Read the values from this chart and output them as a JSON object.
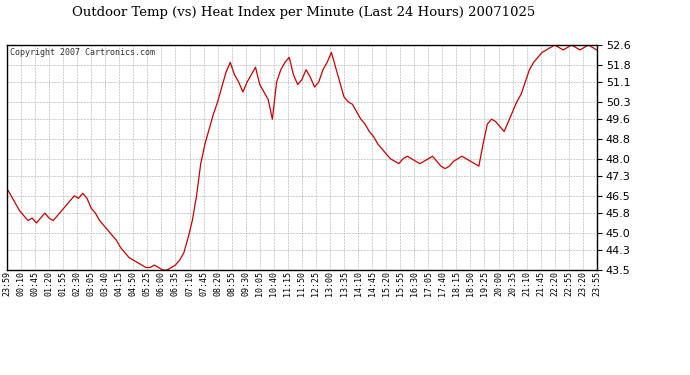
{
  "title": "Outdoor Temp (vs) Heat Index per Minute (Last 24 Hours) 20071025",
  "copyright": "Copyright 2007 Cartronics.com",
  "line_color": "#cc0000",
  "background_color": "#ffffff",
  "grid_color": "#aaaaaa",
  "yticks": [
    43.5,
    44.3,
    45.0,
    45.8,
    46.5,
    47.3,
    48.0,
    48.8,
    49.6,
    50.3,
    51.1,
    51.8,
    52.6
  ],
  "ylim": [
    43.5,
    52.6
  ],
  "xtick_labels": [
    "23:59",
    "00:10",
    "00:45",
    "01:20",
    "01:55",
    "02:30",
    "03:05",
    "03:40",
    "04:15",
    "04:50",
    "05:25",
    "06:00",
    "06:35",
    "07:10",
    "07:45",
    "08:20",
    "08:55",
    "09:30",
    "10:05",
    "10:40",
    "11:15",
    "11:50",
    "12:25",
    "13:00",
    "13:35",
    "14:10",
    "14:45",
    "15:20",
    "15:55",
    "16:30",
    "17:05",
    "17:40",
    "18:15",
    "18:50",
    "19:25",
    "20:00",
    "20:35",
    "21:10",
    "21:45",
    "22:20",
    "22:55",
    "23:20",
    "23:55"
  ],
  "data_y": [
    46.8,
    46.5,
    46.2,
    45.9,
    45.7,
    45.5,
    45.6,
    45.4,
    45.6,
    45.8,
    45.6,
    45.5,
    45.7,
    45.9,
    46.1,
    46.3,
    46.5,
    46.4,
    46.6,
    46.4,
    46.0,
    45.8,
    45.5,
    45.3,
    45.1,
    44.9,
    44.7,
    44.4,
    44.2,
    44.0,
    43.9,
    43.8,
    43.7,
    43.6,
    43.6,
    43.7,
    43.6,
    43.5,
    43.5,
    43.6,
    43.7,
    43.9,
    44.2,
    44.8,
    45.5,
    46.5,
    47.8,
    48.6,
    49.2,
    49.8,
    50.3,
    50.9,
    51.5,
    51.9,
    51.4,
    51.1,
    50.7,
    51.1,
    51.4,
    51.7,
    51.0,
    50.7,
    50.4,
    49.6,
    51.1,
    51.6,
    51.9,
    52.1,
    51.4,
    51.0,
    51.2,
    51.6,
    51.3,
    50.9,
    51.1,
    51.6,
    51.9,
    52.3,
    51.7,
    51.1,
    50.5,
    50.3,
    50.2,
    49.9,
    49.6,
    49.4,
    49.1,
    48.9,
    48.6,
    48.4,
    48.2,
    48.0,
    47.9,
    47.8,
    48.0,
    48.1,
    48.0,
    47.9,
    47.8,
    47.9,
    48.0,
    48.1,
    47.9,
    47.7,
    47.6,
    47.7,
    47.9,
    48.0,
    48.1,
    48.0,
    47.9,
    47.8,
    47.7,
    48.6,
    49.4,
    49.6,
    49.5,
    49.3,
    49.1,
    49.5,
    49.9,
    50.3,
    50.6,
    51.1,
    51.6,
    51.9,
    52.1,
    52.3,
    52.4,
    52.5,
    52.6,
    52.5,
    52.4,
    52.5,
    52.6,
    52.5,
    52.4,
    52.5,
    52.6,
    52.5,
    52.4
  ]
}
